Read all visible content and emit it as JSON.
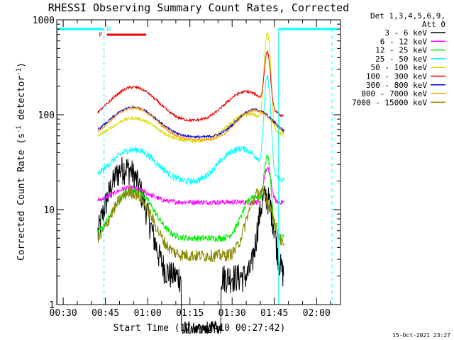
{
  "chart_data": {
    "type": "line",
    "title": "RHESSI Observing Summary Count Rates, Corrected",
    "xlabel": "Start Time (17-Aug-10 00:27:42)",
    "ylabel_parts": {
      "main": "Corrected Count Rate (s",
      "exp": "-1",
      "rest": " detector",
      "close": ")"
    },
    "yscale": "log",
    "ylim": [
      1,
      1000
    ],
    "xlim_minutes": [
      27.7,
      128.5
    ],
    "x_ticks": [
      {
        "value": 30,
        "label": "00:30"
      },
      {
        "value": 45,
        "label": "00:45"
      },
      {
        "value": 60,
        "label": "01:00"
      },
      {
        "value": 75,
        "label": "01:15"
      },
      {
        "value": 90,
        "label": "01:30"
      },
      {
        "value": 105,
        "label": "01:45"
      },
      {
        "value": 120,
        "label": "02:00"
      }
    ],
    "y_ticks": [
      {
        "value": 1,
        "label": "1"
      },
      {
        "value": 10,
        "label": "10"
      },
      {
        "value": 100,
        "label": "100"
      },
      {
        "value": 1000,
        "label": "1000"
      }
    ],
    "legend_header": [
      "Det 1,3,4,5,6,9,",
      "Att 0"
    ],
    "series": [
      {
        "name": "3 - 6 keV",
        "color": "#000000"
      },
      {
        "name": "6 - 12 keV",
        "color": "#ff00ff"
      },
      {
        "name": "12 - 25 keV",
        "color": "#00ee00"
      },
      {
        "name": "25 - 50 keV",
        "color": "#00ffff"
      },
      {
        "name": "50 - 100 keV",
        "color": "#dddd00"
      },
      {
        "name": "100 - 300 keV",
        "color": "#ee0000"
      },
      {
        "name": "300 - 800 keV",
        "color": "#0000dd"
      },
      {
        "name": "800 - 7000 keV",
        "color": "#ff9900"
      },
      {
        "name": "7000 - 15000 keV",
        "color": "#888800"
      }
    ],
    "flag_labels": {
      "night": "N",
      "flare": "F"
    },
    "night_color": "#00ffff",
    "flare_color": "#ee0000",
    "timestamp": "15-Oct-2021 23:27"
  }
}
